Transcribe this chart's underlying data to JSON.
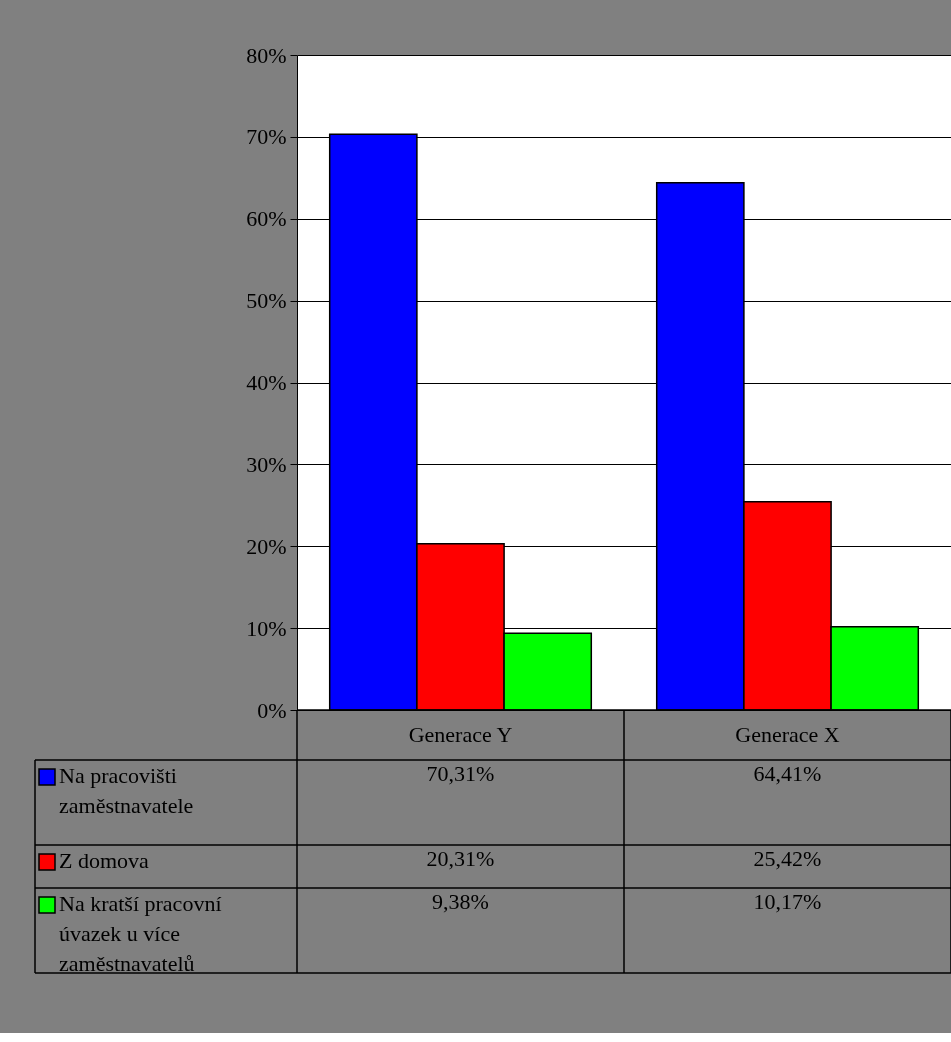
{
  "chart_data": {
    "type": "bar",
    "categories": [
      "Generace Y",
      "Generace X"
    ],
    "series": [
      {
        "name": "Na pracovišti zaměstnavatele",
        "color": "#0000ff",
        "values": [
          70.31,
          64.41
        ],
        "value_labels": [
          "70,31%",
          "64,41%"
        ]
      },
      {
        "name": "Z domova",
        "color": "#ff0000",
        "values": [
          20.31,
          25.42
        ],
        "value_labels": [
          "20,31%",
          "25,42%"
        ]
      },
      {
        "name": "Na kratší pracovní úvazek u více zaměstnavatelů",
        "color": "#00ff00",
        "values": [
          9.38,
          10.17
        ],
        "value_labels": [
          "9,38%",
          "10,17%"
        ]
      }
    ],
    "ylim": [
      0,
      80
    ],
    "yticks": [
      {
        "value": 0,
        "label": "0%"
      },
      {
        "value": 10,
        "label": "10%"
      },
      {
        "value": 20,
        "label": "20%"
      },
      {
        "value": 30,
        "label": "30%"
      },
      {
        "value": 40,
        "label": "40%"
      },
      {
        "value": 50,
        "label": "50%"
      },
      {
        "value": 60,
        "label": "60%"
      },
      {
        "value": 70,
        "label": "70%"
      },
      {
        "value": 80,
        "label": "80%"
      }
    ],
    "grid": "y",
    "legend": "bottom left"
  }
}
